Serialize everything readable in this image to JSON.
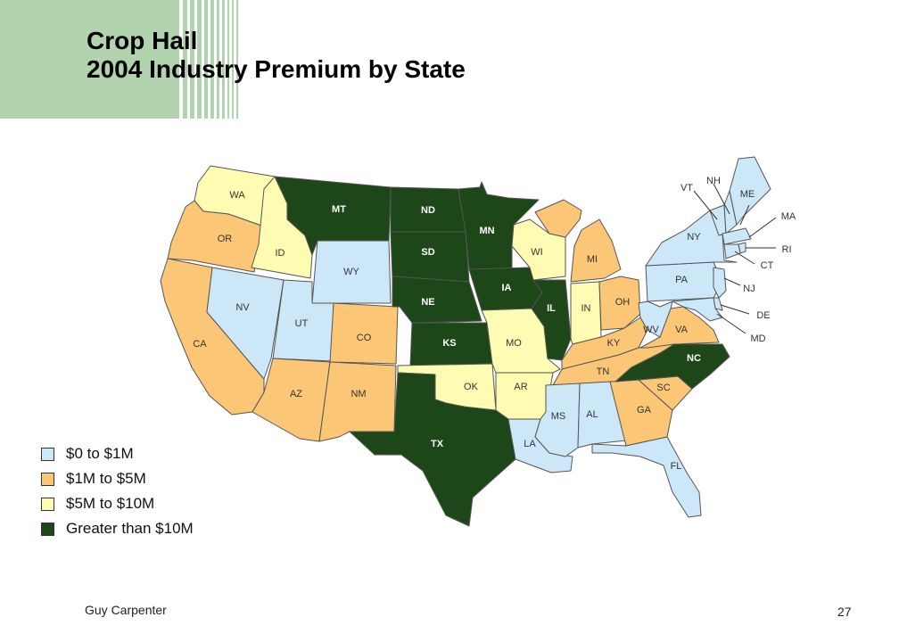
{
  "title": {
    "line1": "Crop Hail",
    "line2": "2004 Industry Premium by State"
  },
  "colors": {
    "blue": "#cce8f8",
    "orange": "#fbc777",
    "yellow": "#fefcb2",
    "green": "#1d4619",
    "stripe": "#b1d4ae"
  },
  "legend": [
    {
      "label": "$0 to $1M",
      "color": "#cce8f8"
    },
    {
      "label": "$1M to $5M",
      "color": "#fbc777"
    },
    {
      "label": "$5M to $10M",
      "color": "#fefcb2"
    },
    {
      "label": "Greater than $10M",
      "color": "#1d4619"
    }
  ],
  "states": {
    "WA": {
      "abbr": "WA",
      "tier": "5M-10M"
    },
    "OR": {
      "abbr": "OR",
      "tier": "1M-5M"
    },
    "CA": {
      "abbr": "CA",
      "tier": "1M-5M"
    },
    "ID": {
      "abbr": "ID",
      "tier": "5M-10M"
    },
    "NV": {
      "abbr": "NV",
      "tier": "0-1M"
    },
    "MT": {
      "abbr": "MT",
      "tier": ">10M"
    },
    "WY": {
      "abbr": "WY",
      "tier": "0-1M"
    },
    "UT": {
      "abbr": "UT",
      "tier": "0-1M"
    },
    "AZ": {
      "abbr": "AZ",
      "tier": "1M-5M"
    },
    "CO": {
      "abbr": "CO",
      "tier": "1M-5M"
    },
    "NM": {
      "abbr": "NM",
      "tier": "1M-5M"
    },
    "ND": {
      "abbr": "ND",
      "tier": ">10M"
    },
    "SD": {
      "abbr": "SD",
      "tier": ">10M"
    },
    "NE": {
      "abbr": "NE",
      "tier": ">10M"
    },
    "KS": {
      "abbr": "KS",
      "tier": ">10M"
    },
    "OK": {
      "abbr": "OK",
      "tier": "5M-10M"
    },
    "TX": {
      "abbr": "TX",
      "tier": ">10M"
    },
    "MN": {
      "abbr": "MN",
      "tier": ">10M"
    },
    "IA": {
      "abbr": "IA",
      "tier": ">10M"
    },
    "MO": {
      "abbr": "MO",
      "tier": "5M-10M"
    },
    "AR": {
      "abbr": "AR",
      "tier": "5M-10M"
    },
    "LA": {
      "abbr": "LA",
      "tier": "0-1M"
    },
    "WI": {
      "abbr": "WI",
      "tier": "5M-10M"
    },
    "IL": {
      "abbr": "IL",
      "tier": ">10M"
    },
    "MI": {
      "abbr": "MI",
      "tier": "1M-5M"
    },
    "IN": {
      "abbr": "IN",
      "tier": "5M-10M"
    },
    "OH": {
      "abbr": "OH",
      "tier": "1M-5M"
    },
    "KY": {
      "abbr": "KY",
      "tier": "1M-5M"
    },
    "TN": {
      "abbr": "TN",
      "tier": "1M-5M"
    },
    "MS": {
      "abbr": "MS",
      "tier": "0-1M"
    },
    "AL": {
      "abbr": "AL",
      "tier": "0-1M"
    },
    "GA": {
      "abbr": "GA",
      "tier": "1M-5M"
    },
    "FL": {
      "abbr": "FL",
      "tier": "0-1M"
    },
    "SC": {
      "abbr": "SC",
      "tier": "1M-5M"
    },
    "NC": {
      "abbr": "NC",
      "tier": ">10M"
    },
    "VA": {
      "abbr": "VA",
      "tier": "1M-5M"
    },
    "WV": {
      "abbr": "WV",
      "tier": "0-1M"
    },
    "PA": {
      "abbr": "PA",
      "tier": "0-1M"
    },
    "NY": {
      "abbr": "NY",
      "tier": "0-1M"
    },
    "VT": {
      "abbr": "VT",
      "tier": "0-1M"
    },
    "NH": {
      "abbr": "NH",
      "tier": "0-1M"
    },
    "ME": {
      "abbr": "ME",
      "tier": "0-1M"
    },
    "MA": {
      "abbr": "MA",
      "tier": "0-1M"
    },
    "RI": {
      "abbr": "RI",
      "tier": "0-1M"
    },
    "CT": {
      "abbr": "CT",
      "tier": "0-1M"
    },
    "NJ": {
      "abbr": "NJ",
      "tier": "0-1M"
    },
    "DE": {
      "abbr": "DE",
      "tier": "0-1M"
    },
    "MD": {
      "abbr": "MD",
      "tier": "0-1M"
    }
  },
  "footer": {
    "source": "Guy Carpenter",
    "page": "27"
  }
}
